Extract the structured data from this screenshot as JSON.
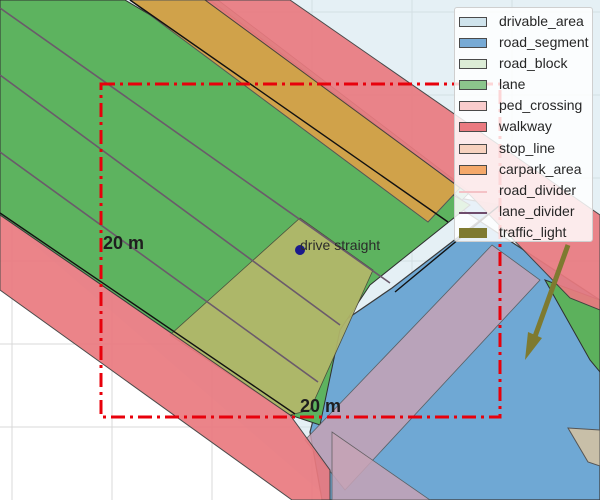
{
  "scene": {
    "distance_label_left": "20 m",
    "distance_label_bottom": "20 m",
    "command_label": "drive straight",
    "ego_color": "#1a1a8c",
    "focus_box_color": "#e8000b",
    "grid": true
  },
  "legend": {
    "items": [
      {
        "label": "drivable_area",
        "color": "#cfe3ec",
        "style": "patch"
      },
      {
        "label": "road_segment",
        "color": "#77aad5",
        "style": "patch"
      },
      {
        "label": "road_block",
        "color": "#dcecd6",
        "style": "patch"
      },
      {
        "label": "lane",
        "color": "#8cc58c",
        "style": "patch"
      },
      {
        "label": "ped_crossing",
        "color": "#f9cccc",
        "style": "patch"
      },
      {
        "label": "walkway",
        "color": "#ea7a80",
        "style": "patch"
      },
      {
        "label": "stop_line",
        "color": "#f7d2bf",
        "style": "patch"
      },
      {
        "label": "carpark_area",
        "color": "#f4a86a",
        "style": "patch"
      },
      {
        "label": "road_divider",
        "color": "#f4c2c6",
        "style": "line"
      },
      {
        "label": "lane_divider",
        "color": "#6e4c6c",
        "style": "line"
      },
      {
        "label": "traffic_light",
        "color": "#7e7a30",
        "style": "filled"
      }
    ]
  }
}
